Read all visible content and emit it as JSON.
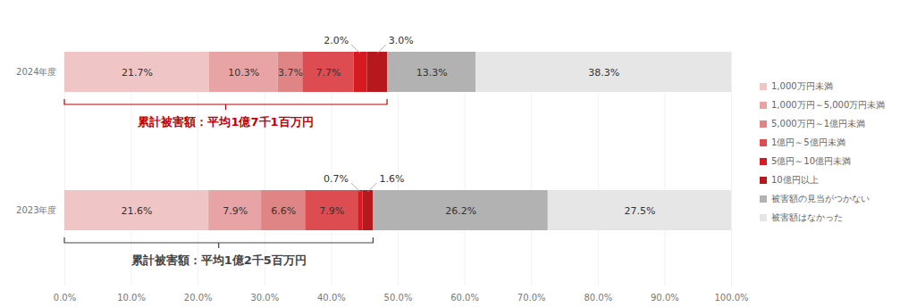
{
  "chart_data": {
    "type": "bar",
    "orientation": "horizontal",
    "stacked": true,
    "data_labels": true,
    "grid": true,
    "legend": "right",
    "categories": [
      "2024年度",
      "2023年度"
    ],
    "series": [
      {
        "name": "1,000万円未満",
        "color": "#efc5c5",
        "values": [
          21.7,
          21.6
        ],
        "value_labels": [
          "21.7%",
          "21.6%"
        ]
      },
      {
        "name": "1,000万円～5,000万円未満",
        "color": "#e8a4a4",
        "values": [
          10.3,
          7.9
        ],
        "value_labels": [
          "10.3%",
          "7.9%"
        ]
      },
      {
        "name": "5,000万円～1億円未満",
        "color": "#e08585",
        "values": [
          3.7,
          6.6
        ],
        "value_labels": [
          "3.7%",
          "6.6%"
        ]
      },
      {
        "name": "1億円～5億円未満",
        "color": "#dc4c50",
        "values": [
          7.7,
          7.9
        ],
        "value_labels": [
          "7.7%",
          "7.9%"
        ]
      },
      {
        "name": "5億円～10億円未満",
        "color": "#d51a22",
        "values": [
          2.0,
          0.7
        ],
        "value_labels": [
          "2.0%",
          "0.7%"
        ]
      },
      {
        "name": "10億円以上",
        "color": "#b5191d",
        "values": [
          3.0,
          1.6
        ],
        "value_labels": [
          "3.0%",
          "1.6%"
        ]
      },
      {
        "name": "被害額の見当がつかない",
        "color": "#b2b2b2",
        "values": [
          13.3,
          26.2
        ],
        "value_labels": [
          "13.3%",
          "26.2%"
        ]
      },
      {
        "name": "被害額はなかった",
        "color": "#e6e6e6",
        "values": [
          38.3,
          27.5
        ],
        "value_labels": [
          "38.3%",
          "27.5%"
        ]
      }
    ],
    "xlim": [
      0,
      100
    ],
    "xticks": [
      {
        "value": 0,
        "label": "0.0%"
      },
      {
        "value": 10,
        "label": "10.0%"
      },
      {
        "value": 20,
        "label": "20.0%"
      },
      {
        "value": 30,
        "label": "30.0%"
      },
      {
        "value": 40,
        "label": "40.0%"
      },
      {
        "value": 50,
        "label": "50.0%"
      },
      {
        "value": 60,
        "label": "60.0%"
      },
      {
        "value": 70,
        "label": "70.0%"
      },
      {
        "value": 80,
        "label": "80.0%"
      },
      {
        "value": 90,
        "label": "90.0%"
      },
      {
        "value": 100,
        "label": "100.0%"
      }
    ],
    "annotations": [
      {
        "category": "2024年度",
        "text": "累計被害額：平均1億7千1百万円",
        "color": "#c00000",
        "series": [
          "1,000万円未満",
          "1,000万円～5,000万円未満",
          "5,000万円～1億円未満",
          "1億円～5億円未満",
          "5億円～10億円未満",
          "10億円以上"
        ]
      },
      {
        "category": "2023年度",
        "text": "累計被害額：平均1億2千5百万円",
        "color": "#444444",
        "series": [
          "1,000万円未満",
          "1,000万円～5,000万円未満",
          "5,000万円～1億円未満",
          "1億円～5億円未満",
          "5億円～10億円未満",
          "10億円以上"
        ]
      }
    ]
  }
}
